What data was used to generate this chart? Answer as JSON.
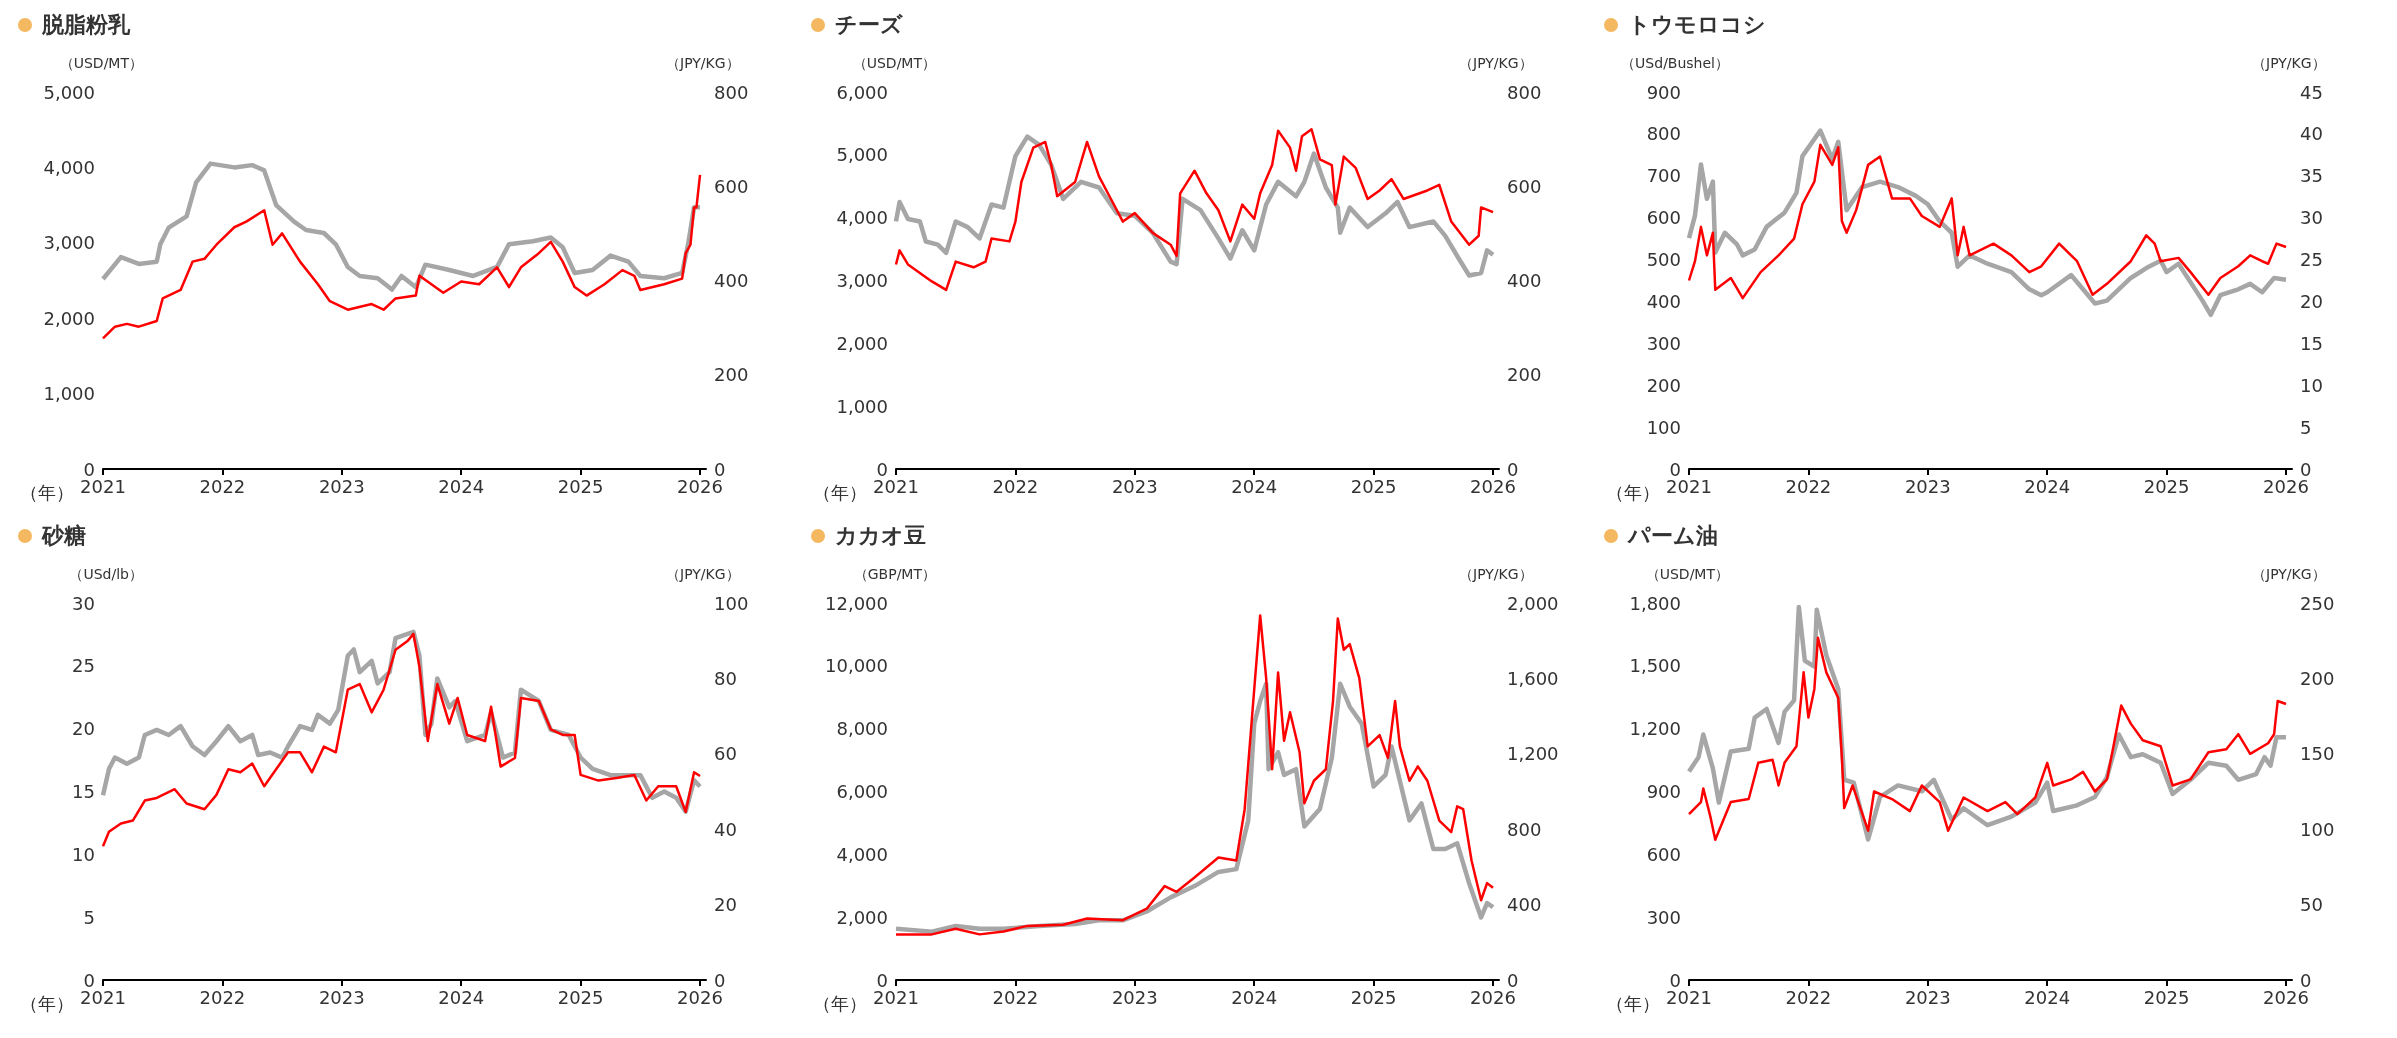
{
  "chart_data": [
    {
      "type": "line",
      "title": "脱脂粉乳",
      "xlabel": "（年）",
      "ylabel": "（USD/MT）",
      "y2label": "（JPY/KG）",
      "xlim": [
        2021,
        2026.05
      ],
      "xticks": [
        2021,
        2022,
        2023,
        2024,
        2025,
        2026
      ],
      "ylim": [
        0,
        5000
      ],
      "yticks": [
        0,
        {
          "value": 1000,
          "label": "1,000"
        },
        {
          "value": 2000,
          "label": "2,000"
        },
        {
          "value": 3000,
          "label": "3,000"
        },
        {
          "value": 4000,
          "label": "4,000"
        },
        {
          "value": 5000,
          "label": "5,000"
        }
      ],
      "y2lim": [
        0,
        800
      ],
      "y2ticks": [
        0,
        200,
        400,
        600,
        800
      ],
      "marker": "none",
      "series": [
        {
          "color": "#a6a6a6",
          "x": [
            2021,
            2021.15,
            2021.3,
            2021.45,
            2021.48,
            2021.55,
            2021.7,
            2021.78,
            2021.9,
            2022.1,
            2022.25,
            2022.35,
            2022.45,
            2022.6,
            2022.7,
            2022.85,
            2022.95,
            2023.05,
            2023.15,
            2023.3,
            2023.42,
            2023.5,
            2023.62,
            2023.7,
            2023.9,
            2024.1,
            2024.3,
            2024.4,
            2024.6,
            2024.75,
            2024.85,
            2024.95,
            2025.1,
            2025.25,
            2025.4,
            2025.5,
            2025.7,
            2025.85,
            2025.9,
            2025.95,
            2026
          ],
          "values": [
            2520,
            2810,
            2720,
            2750,
            2980,
            3200,
            3350,
            3800,
            4050,
            4000,
            4030,
            3960,
            3500,
            3280,
            3170,
            3130,
            2980,
            2680,
            2560,
            2530,
            2380,
            2560,
            2410,
            2710,
            2640,
            2560,
            2680,
            2980,
            3020,
            3070,
            2940,
            2600,
            2640,
            2830,
            2750,
            2560,
            2530,
            2600,
            2980,
            3470,
            3470
          ]
        },
        {
          "color": "#ff0000",
          "axis": "y2",
          "x": [
            2021,
            2021.1,
            2021.2,
            2021.3,
            2021.45,
            2021.5,
            2021.65,
            2021.75,
            2021.85,
            2021.95,
            2022.1,
            2022.2,
            2022.35,
            2022.42,
            2022.5,
            2022.65,
            2022.8,
            2022.9,
            2023.05,
            2023.25,
            2023.35,
            2023.45,
            2023.62,
            2023.65,
            2023.85,
            2024,
            2024.15,
            2024.3,
            2024.4,
            2024.5,
            2024.65,
            2024.75,
            2024.85,
            2024.95,
            2025.05,
            2025.2,
            2025.35,
            2025.45,
            2025.5,
            2025.7,
            2025.85,
            2025.88,
            2025.92,
            2025.95,
            2025.97,
            2026
          ],
          "values": [
            277,
            302,
            308,
            302,
            314,
            362,
            380,
            440,
            446,
            476,
            513,
            525,
            549,
            476,
            500,
            440,
            392,
            356,
            338,
            350,
            338,
            362,
            368,
            410,
            374,
            398,
            392,
            428,
            386,
            428,
            458,
            482,
            440,
            386,
            368,
            392,
            422,
            410,
            380,
            392,
            404,
            458,
            476,
            555,
            555,
            624
          ]
        }
      ]
    },
    {
      "type": "line",
      "title": "チーズ",
      "xlabel": "（年）",
      "ylabel": "（USD/MT）",
      "y2label": "（JPY/KG）",
      "xlim": [
        2021,
        2026.05
      ],
      "xticks": [
        2021,
        2022,
        2023,
        2024,
        2025,
        2026
      ],
      "ylim": [
        0,
        6000
      ],
      "yticks": [
        0,
        {
          "value": 1000,
          "label": "1,000"
        },
        {
          "value": 2000,
          "label": "2,000"
        },
        {
          "value": 3000,
          "label": "3,000"
        },
        {
          "value": 4000,
          "label": "4,000"
        },
        {
          "value": 5000,
          "label": "5,000"
        },
        {
          "value": 6000,
          "label": "6,000"
        }
      ],
      "y2lim": [
        0,
        800
      ],
      "y2ticks": [
        0,
        200,
        400,
        600,
        800
      ],
      "marker": "none",
      "series": [
        {
          "color": "#a6a6a6",
          "x": [
            2021,
            2021.03,
            2021.1,
            2021.2,
            2021.25,
            2021.35,
            2021.42,
            2021.5,
            2021.6,
            2021.7,
            2021.8,
            2021.9,
            2021.95,
            2022,
            2022.1,
            2022.2,
            2022.3,
            2022.4,
            2022.55,
            2022.7,
            2022.85,
            2023,
            2023.15,
            2023.3,
            2023.35,
            2023.4,
            2023.55,
            2023.7,
            2023.8,
            2023.9,
            2024,
            2024.1,
            2024.2,
            2024.35,
            2024.42,
            2024.5,
            2024.6,
            2024.7,
            2024.72,
            2024.8,
            2024.95,
            2025.1,
            2025.2,
            2025.3,
            2025.5,
            2025.6,
            2025.7,
            2025.8,
            2025.9,
            2025.95,
            2026
          ],
          "values": [
            3940,
            4250,
            3980,
            3940,
            3620,
            3570,
            3440,
            3940,
            3850,
            3670,
            4210,
            4160,
            4570,
            4980,
            5290,
            5160,
            4840,
            4300,
            4570,
            4480,
            4070,
            4030,
            3760,
            3300,
            3260,
            4300,
            4120,
            3670,
            3350,
            3800,
            3480,
            4210,
            4570,
            4340,
            4570,
            5020,
            4480,
            4160,
            3760,
            4160,
            3850,
            4070,
            4250,
            3850,
            3940,
            3710,
            3390,
            3080,
            3120,
            3480,
            3410
          ]
        },
        {
          "color": "#ff0000",
          "axis": "y2",
          "x": [
            2021,
            2021.03,
            2021.1,
            2021.2,
            2021.3,
            2021.42,
            2021.5,
            2021.65,
            2021.75,
            2021.8,
            2021.95,
            2022,
            2022.05,
            2022.15,
            2022.25,
            2022.3,
            2022.35,
            2022.5,
            2022.6,
            2022.7,
            2022.8,
            2022.9,
            2023,
            2023.15,
            2023.3,
            2023.35,
            2023.38,
            2023.5,
            2023.6,
            2023.7,
            2023.8,
            2023.9,
            2024,
            2024.05,
            2024.15,
            2024.2,
            2024.3,
            2024.35,
            2024.4,
            2024.48,
            2024.55,
            2024.65,
            2024.68,
            2024.75,
            2024.85,
            2024.95,
            2025.05,
            2025.15,
            2025.25,
            2025.45,
            2025.55,
            2025.65,
            2025.8,
            2025.88,
            2025.9,
            2026
          ],
          "values": [
            434,
            464,
            434,
            416,
            398,
            380,
            440,
            428,
            440,
            489,
            483,
            525,
            609,
            682,
            694,
            645,
            579,
            609,
            694,
            621,
            573,
            525,
            543,
            501,
            476,
            452,
            585,
            633,
            585,
            549,
            483,
            561,
            531,
            585,
            645,
            718,
            682,
            633,
            706,
            721,
            657,
            645,
            561,
            663,
            639,
            573,
            591,
            615,
            573,
            591,
            603,
            525,
            476,
            495,
            555,
            545
          ]
        }
      ]
    },
    {
      "type": "line",
      "title": "トウモロコシ",
      "xlabel": "（年）",
      "ylabel": "（USd/Bushel）",
      "y2label": "（JPY/KG）",
      "xlim": [
        2021,
        2026.05
      ],
      "xticks": [
        2021,
        2022,
        2023,
        2024,
        2025,
        2026
      ],
      "ylim": [
        0,
        900
      ],
      "yticks": [
        0,
        100,
        200,
        300,
        400,
        500,
        600,
        700,
        800,
        900
      ],
      "y2lim": [
        0,
        45
      ],
      "y2ticks": [
        0,
        5,
        10,
        15,
        20,
        25,
        30,
        35,
        40,
        45
      ],
      "marker": "none",
      "series": [
        {
          "color": "#a6a6a6",
          "x": [
            2021,
            2021.05,
            2021.1,
            2021.15,
            2021.2,
            2021.22,
            2021.3,
            2021.4,
            2021.45,
            2021.55,
            2021.65,
            2021.8,
            2021.9,
            2021.95,
            2022.1,
            2022.2,
            2022.25,
            2022.32,
            2022.45,
            2022.6,
            2022.75,
            2022.9,
            2023,
            2023.1,
            2023.2,
            2023.25,
            2023.35,
            2023.5,
            2023.7,
            2023.85,
            2023.95,
            2024,
            2024.2,
            2024.4,
            2024.5,
            2024.7,
            2024.85,
            2024.95,
            2025,
            2025.1,
            2025.3,
            2025.37,
            2025.45,
            2025.6,
            2025.7,
            2025.8,
            2025.9,
            2026
          ],
          "values": [
            551,
            605,
            727,
            645,
            686,
            517,
            564,
            537,
            510,
            524,
            578,
            612,
            659,
            747,
            808,
            740,
            781,
            618,
            673,
            686,
            673,
            652,
            632,
            591,
            564,
            483,
            510,
            490,
            470,
            429,
            415,
            422,
            463,
            395,
            402,
            456,
            483,
            497,
            470,
            490,
            402,
            368,
            415,
            429,
            442,
            422,
            456,
            452
          ]
        },
        {
          "color": "#ff0000",
          "axis": "y2",
          "x": [
            2021,
            2021.05,
            2021.1,
            2021.15,
            2021.2,
            2021.22,
            2021.35,
            2021.45,
            2021.6,
            2021.75,
            2021.88,
            2021.95,
            2022.05,
            2022.1,
            2022.2,
            2022.25,
            2022.28,
            2022.32,
            2022.4,
            2022.5,
            2022.6,
            2022.7,
            2022.85,
            2022.95,
            2023.1,
            2023.2,
            2023.25,
            2023.3,
            2023.35,
            2023.55,
            2023.7,
            2023.85,
            2023.95,
            2024.1,
            2024.25,
            2024.38,
            2024.5,
            2024.7,
            2024.83,
            2024.9,
            2024.95,
            2025.1,
            2025.2,
            2025.35,
            2025.45,
            2025.6,
            2025.7,
            2025.8,
            2025.85,
            2025.92,
            2026
          ],
          "values": [
            22.5,
            24.8,
            28.9,
            25.5,
            28.2,
            21.4,
            22.8,
            20.4,
            23.5,
            25.5,
            27.5,
            31.6,
            34.3,
            38.7,
            36.3,
            38.4,
            29.6,
            28.2,
            30.9,
            36.3,
            37.3,
            32.3,
            32.3,
            30.2,
            28.9,
            32.3,
            25.5,
            28.9,
            25.5,
            26.9,
            25.5,
            23.5,
            24.2,
            26.9,
            24.8,
            20.8,
            22.1,
            24.8,
            27.9,
            26.9,
            24.8,
            25.2,
            23.5,
            20.8,
            22.8,
            24.2,
            25.5,
            24.8,
            24.5,
            26.9,
            26.5
          ]
        }
      ]
    },
    {
      "type": "line",
      "title": "砂糖",
      "xlabel": "（年）",
      "ylabel": "（USd/lb）",
      "y2label": "（JPY/KG）",
      "xlim": [
        2021,
        2026.05
      ],
      "xticks": [
        2021,
        2022,
        2023,
        2024,
        2025,
        2026
      ],
      "ylim": [
        0,
        30
      ],
      "yticks": [
        0,
        5,
        10,
        15,
        20,
        25,
        30
      ],
      "y2lim": [
        0,
        100
      ],
      "y2ticks": [
        0,
        20,
        40,
        60,
        80,
        100
      ],
      "marker": "none",
      "series": [
        {
          "color": "#a6a6a6",
          "x": [
            2021,
            2021.05,
            2021.1,
            2021.2,
            2021.3,
            2021.35,
            2021.45,
            2021.55,
            2021.65,
            2021.75,
            2021.85,
            2021.95,
            2022.05,
            2022.15,
            2022.25,
            2022.3,
            2022.4,
            2022.5,
            2022.55,
            2022.65,
            2022.75,
            2022.8,
            2022.9,
            2022.97,
            2023.05,
            2023.1,
            2023.15,
            2023.25,
            2023.3,
            2023.4,
            2023.45,
            2023.6,
            2023.65,
            2023.7,
            2023.75,
            2023.8,
            2023.9,
            2023.95,
            2024.05,
            2024.2,
            2024.25,
            2024.35,
            2024.45,
            2024.5,
            2024.65,
            2024.75,
            2024.9,
            2025,
            2025.1,
            2025.25,
            2025.5,
            2025.6,
            2025.7,
            2025.8,
            2025.88,
            2025.95,
            2026
          ],
          "values": [
            14.7,
            16.8,
            17.7,
            17.2,
            17.7,
            19.5,
            19.9,
            19.5,
            20.2,
            18.6,
            17.9,
            19.0,
            20.2,
            19.0,
            19.5,
            17.9,
            18.1,
            17.7,
            18.6,
            20.2,
            19.9,
            21.1,
            20.4,
            21.5,
            25.8,
            26.3,
            24.5,
            25.4,
            23.6,
            24.5,
            27.2,
            27.7,
            25.8,
            19.5,
            20.4,
            24.0,
            21.7,
            22.2,
            19.0,
            19.5,
            21.3,
            17.7,
            18.1,
            23.1,
            22.2,
            19.9,
            19.5,
            17.7,
            16.8,
            16.3,
            16.3,
            14.5,
            15.0,
            14.5,
            13.4,
            15.9,
            15.4
          ]
        },
        {
          "color": "#ff0000",
          "axis": "y2",
          "x": [
            2021,
            2021.05,
            2021.15,
            2021.25,
            2021.35,
            2021.45,
            2021.6,
            2021.7,
            2021.85,
            2021.95,
            2022.05,
            2022.15,
            2022.25,
            2022.35,
            2022.45,
            2022.55,
            2022.65,
            2022.75,
            2022.85,
            2022.95,
            2023.05,
            2023.15,
            2023.25,
            2023.35,
            2023.45,
            2023.55,
            2023.6,
            2023.65,
            2023.72,
            2023.8,
            2023.9,
            2023.97,
            2024.05,
            2024.2,
            2024.25,
            2024.33,
            2024.45,
            2024.5,
            2024.65,
            2024.75,
            2024.85,
            2024.95,
            2025,
            2025.15,
            2025.3,
            2025.45,
            2025.55,
            2025.65,
            2025.8,
            2025.88,
            2025.95,
            2026
          ],
          "values": [
            35.5,
            39.3,
            41.5,
            42.3,
            47.6,
            48.3,
            50.6,
            46.8,
            45.3,
            49.1,
            55.9,
            55.1,
            57.4,
            51.4,
            55.9,
            60.4,
            60.4,
            55.1,
            61.9,
            60.4,
            77.0,
            78.5,
            71.0,
            77.0,
            87.6,
            89.9,
            91.8,
            83.1,
            63.4,
            78.5,
            68.0,
            74.8,
            65.0,
            63.4,
            72.5,
            56.6,
            58.9,
            74.8,
            74.0,
            66.5,
            65.0,
            65.0,
            54.4,
            52.9,
            53.6,
            54.4,
            47.6,
            51.4,
            51.4,
            44.6,
            55.1,
            54.1
          ]
        }
      ]
    },
    {
      "type": "line",
      "title": "カカオ豆",
      "xlabel": "（年）",
      "ylabel": "（GBP/MT）",
      "y2label": "（JPY/KG）",
      "xlim": [
        2021,
        2026.05
      ],
      "xticks": [
        2021,
        2022,
        2023,
        2024,
        2025,
        2026
      ],
      "ylim": [
        0,
        12000
      ],
      "yticks": [
        0,
        {
          "value": 2000,
          "label": "2,000"
        },
        {
          "value": 4000,
          "label": "4,000"
        },
        {
          "value": 6000,
          "label": "6,000"
        },
        {
          "value": 8000,
          "label": "8,000"
        },
        {
          "value": 10000,
          "label": "10,000"
        },
        {
          "value": 12000,
          "label": "12,000"
        }
      ],
      "y2lim": [
        0,
        2000
      ],
      "y2ticks": [
        0,
        400,
        800,
        {
          "value": 1200,
          "label": "1,200"
        },
        {
          "value": 1600,
          "label": "1,600"
        },
        {
          "value": 2000,
          "label": "2,000"
        }
      ],
      "marker": "none",
      "series": [
        {
          "color": "#a6a6a6",
          "x": [
            2021,
            2021.3,
            2021.5,
            2021.7,
            2021.9,
            2022.2,
            2022.5,
            2022.7,
            2022.9,
            2023.1,
            2023.3,
            2023.5,
            2023.7,
            2023.85,
            2023.95,
            2024,
            2024.05,
            2024.1,
            2024.12,
            2024.2,
            2024.25,
            2024.35,
            2024.42,
            2024.55,
            2024.65,
            2024.72,
            2024.8,
            2024.9,
            2025,
            2025.1,
            2025.15,
            2025.3,
            2025.4,
            2025.5,
            2025.6,
            2025.7,
            2025.8,
            2025.9,
            2025.95,
            2026
          ],
          "values": [
            1630,
            1540,
            1720,
            1630,
            1630,
            1720,
            1780,
            1900,
            1900,
            2180,
            2630,
            2990,
            3440,
            3530,
            5080,
            8160,
            8880,
            9430,
            6710,
            7250,
            6530,
            6710,
            4890,
            5440,
            7070,
            9430,
            8700,
            8160,
            6160,
            6530,
            7430,
            5080,
            5620,
            4170,
            4170,
            4350,
            3080,
            1990,
            2450,
            2320
          ]
        },
        {
          "color": "#ff0000",
          "axis": "y2",
          "x": [
            2021,
            2021.3,
            2021.5,
            2021.7,
            2021.9,
            2022.1,
            2022.4,
            2022.6,
            2022.9,
            2023.1,
            2023.25,
            2023.35,
            2023.5,
            2023.7,
            2023.85,
            2023.92,
            2024,
            2024.05,
            2024.1,
            2024.15,
            2024.2,
            2024.25,
            2024.3,
            2024.38,
            2024.42,
            2024.5,
            2024.6,
            2024.66,
            2024.7,
            2024.75,
            2024.8,
            2024.88,
            2024.95,
            2025.05,
            2025.12,
            2025.18,
            2025.22,
            2025.3,
            2025.37,
            2025.45,
            2025.55,
            2025.65,
            2025.7,
            2025.75,
            2025.82,
            2025.9,
            2025.95,
            2026
          ],
          "values": [
            242,
            242,
            272,
            242,
            257,
            287,
            293,
            326,
            317,
            378,
            498,
            468,
            544,
            650,
            634,
            906,
            1541,
            1934,
            1601,
            1118,
            1631,
            1269,
            1420,
            1208,
            937,
            1057,
            1118,
            1480,
            1918,
            1752,
            1782,
            1601,
            1239,
            1299,
            1178,
            1480,
            1239,
            1057,
            1133,
            1057,
            846,
            785,
            921,
            906,
            634,
            423,
            514,
            489
          ]
        }
      ]
    },
    {
      "type": "line",
      "title": "パーム油",
      "xlabel": "（年）",
      "ylabel": "（USD/MT）",
      "y2label": "（JPY/KG）",
      "xlim": [
        2021,
        2026.05
      ],
      "xticks": [
        2021,
        2022,
        2023,
        2024,
        2025,
        2026
      ],
      "ylim": [
        0,
        1800
      ],
      "yticks": [
        0,
        300,
        600,
        900,
        {
          "value": 1200,
          "label": "1,200"
        },
        {
          "value": 1500,
          "label": "1,500"
        },
        {
          "value": 1800,
          "label": "1,800"
        }
      ],
      "y2lim": [
        0,
        250
      ],
      "y2ticks": [
        0,
        50,
        100,
        150,
        200,
        250
      ],
      "marker": "none",
      "series": [
        {
          "color": "#a6a6a6",
          "x": [
            2021,
            2021.08,
            2021.12,
            2021.2,
            2021.25,
            2021.35,
            2021.5,
            2021.55,
            2021.65,
            2021.75,
            2021.8,
            2021.88,
            2021.92,
            2021.97,
            2022.05,
            2022.07,
            2022.15,
            2022.25,
            2022.3,
            2022.38,
            2022.5,
            2022.6,
            2022.75,
            2022.95,
            2023.05,
            2023.2,
            2023.3,
            2023.5,
            2023.7,
            2023.9,
            2024,
            2024.05,
            2024.25,
            2024.4,
            2024.5,
            2024.6,
            2024.7,
            2024.8,
            2024.95,
            2025.05,
            2025.2,
            2025.35,
            2025.5,
            2025.6,
            2025.75,
            2025.82,
            2025.87,
            2025.92,
            2026
          ],
          "values": [
            996,
            1064,
            1172,
            1010,
            847,
            1091,
            1104,
            1253,
            1294,
            1132,
            1280,
            1335,
            1781,
            1524,
            1497,
            1768,
            1551,
            1389,
            956,
            942,
            671,
            874,
            929,
            901,
            956,
            766,
            820,
            739,
            780,
            847,
            942,
            807,
            834,
            874,
            969,
            1172,
            1064,
            1078,
            1037,
            888,
            956,
            1037,
            1023,
            956,
            983,
            1064,
            1023,
            1159,
            1159
          ]
        },
        {
          "color": "#ff0000",
          "axis": "y2",
          "x": [
            2021,
            2021.1,
            2021.12,
            2021.18,
            2021.22,
            2021.35,
            2021.5,
            2021.58,
            2021.7,
            2021.75,
            2021.8,
            2021.9,
            2021.96,
            2022,
            2022.05,
            2022.08,
            2022.15,
            2022.25,
            2022.28,
            2022.3,
            2022.37,
            2022.5,
            2022.55,
            2022.7,
            2022.85,
            2022.95,
            2023.1,
            2023.17,
            2023.3,
            2023.5,
            2023.65,
            2023.75,
            2023.9,
            2024,
            2024.05,
            2024.2,
            2024.3,
            2024.4,
            2024.5,
            2024.55,
            2024.62,
            2024.7,
            2024.8,
            2024.95,
            2025.05,
            2025.2,
            2025.35,
            2025.5,
            2025.6,
            2025.7,
            2025.85,
            2025.9,
            2025.93,
            2026
          ],
          "values": [
            110,
            118,
            127,
            108,
            93,
            118,
            120,
            144,
            146,
            129,
            144,
            155,
            204,
            174,
            193,
            227,
            204,
            187,
            148,
            114,
            129,
            99,
            125,
            120,
            112,
            129,
            118,
            99,
            121,
            112,
            118,
            110,
            121,
            144,
            129,
            133,
            138,
            125,
            133,
            153,
            182,
            170,
            159,
            155,
            129,
            133,
            151,
            153,
            163,
            150,
            157,
            163,
            185,
            183
          ]
        }
      ]
    }
  ]
}
